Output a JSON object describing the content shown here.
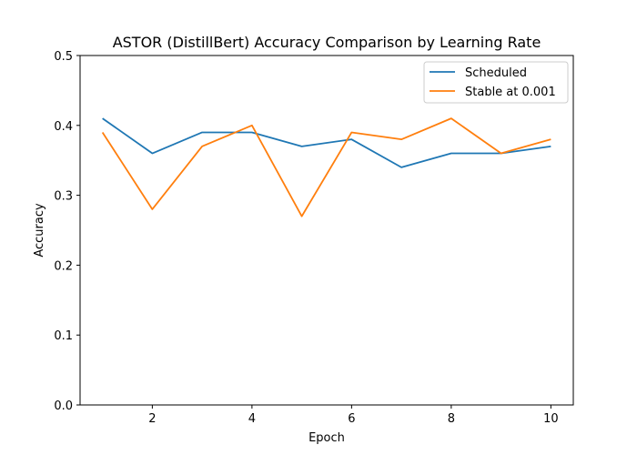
{
  "chart_data": {
    "type": "line",
    "title": "ASTOR (DistillBert)  Accuracy Comparison by Learning Rate",
    "xlabel": "Epoch",
    "ylabel": "Accuracy",
    "x": [
      1,
      2,
      3,
      4,
      5,
      6,
      7,
      8,
      9,
      10
    ],
    "xlim": [
      0.55,
      10.45
    ],
    "ylim": [
      0.0,
      0.5
    ],
    "xticks": [
      2,
      4,
      6,
      8,
      10
    ],
    "yticks": [
      0.0,
      0.1,
      0.2,
      0.3,
      0.4,
      0.5
    ],
    "xtick_labels": [
      "2",
      "4",
      "6",
      "8",
      "10"
    ],
    "ytick_labels": [
      "0.0",
      "0.1",
      "0.2",
      "0.3",
      "0.4",
      "0.5"
    ],
    "grid": false,
    "legend_position": "top-right",
    "series": [
      {
        "name": "Scheduled",
        "color": "#1f77b4",
        "values": [
          0.41,
          0.36,
          0.39,
          0.39,
          0.37,
          0.38,
          0.34,
          0.36,
          0.36,
          0.37
        ]
      },
      {
        "name": "Stable at 0.001",
        "color": "#ff7f0e",
        "values": [
          0.39,
          0.28,
          0.37,
          0.4,
          0.27,
          0.39,
          0.38,
          0.41,
          0.36,
          0.38
        ]
      }
    ]
  }
}
